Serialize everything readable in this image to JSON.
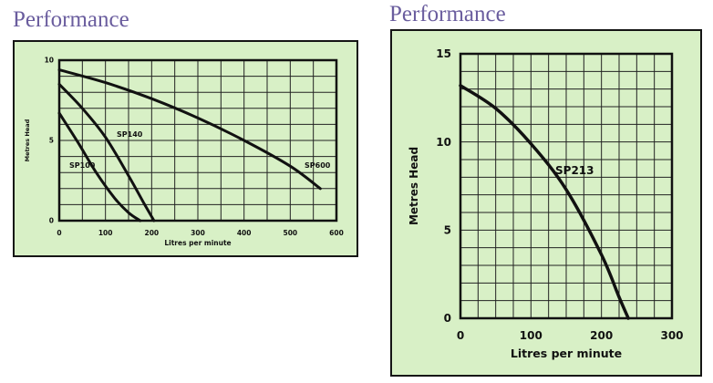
{
  "left": {
    "title": "Performance",
    "chart_data": {
      "type": "line",
      "xlabel": "Litres per minute",
      "ylabel": "Metres Head",
      "xlim": [
        0,
        600
      ],
      "ylim": [
        0,
        10
      ],
      "xticks": [
        "0",
        "100",
        "200",
        "300",
        "400",
        "500",
        "600"
      ],
      "yticks": [
        "0",
        "5",
        "10"
      ],
      "grid": true,
      "series": [
        {
          "name": "SP100",
          "x": [
            0,
            40,
            80,
            120,
            150,
            175
          ],
          "y": [
            6.7,
            4.9,
            3.0,
            1.4,
            0.5,
            0
          ]
        },
        {
          "name": "SP140",
          "x": [
            0,
            50,
            100,
            150,
            185,
            205
          ],
          "y": [
            8.5,
            7.0,
            5.2,
            2.8,
            1.0,
            0
          ]
        },
        {
          "name": "SP600",
          "x": [
            0,
            100,
            200,
            300,
            400,
            500,
            565
          ],
          "y": [
            9.4,
            8.6,
            7.6,
            6.4,
            5.0,
            3.4,
            2.0
          ]
        }
      ]
    }
  },
  "right": {
    "title": "Performance",
    "chart_data": {
      "type": "line",
      "xlabel": "Litres per minute",
      "ylabel": "Metres Head",
      "xlim": [
        0,
        300
      ],
      "ylim": [
        0,
        15
      ],
      "xticks": [
        "0",
        "100",
        "200",
        "300"
      ],
      "yticks": [
        "0",
        "5",
        "10",
        "15"
      ],
      "grid": true,
      "series": [
        {
          "name": "SP213",
          "x": [
            0,
            50,
            100,
            150,
            200,
            225,
            238
          ],
          "y": [
            13.2,
            11.9,
            9.9,
            7.3,
            3.6,
            1.2,
            0
          ]
        }
      ]
    }
  }
}
